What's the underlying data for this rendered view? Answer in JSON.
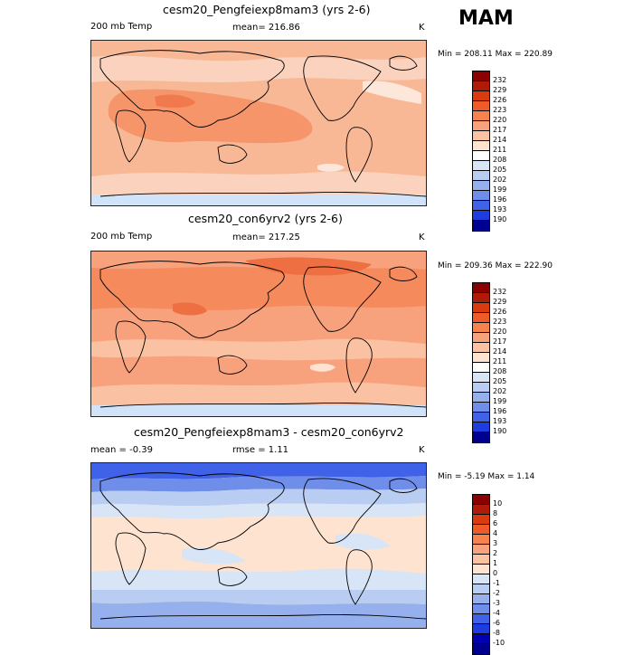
{
  "season": "MAM",
  "panels": [
    {
      "title": "cesm20_Pengfeiexp8mam3 (yrs 2-6)",
      "left": "200 mb Temp",
      "center": "mean= 216.86",
      "units": "K",
      "minmax": "Min = 208.11 Max = 220.89",
      "colorbar": {
        "labels": [
          "232",
          "229",
          "226",
          "223",
          "220",
          "217",
          "214",
          "211",
          "208",
          "205",
          "202",
          "199",
          "196",
          "193",
          "190"
        ],
        "colors": [
          "#8b0000",
          "#b01a08",
          "#d93a10",
          "#ee5a28",
          "#f6824d",
          "#f7a27c",
          "#fac2a3",
          "#fde3d0",
          "#ffffff",
          "#d7e5f7",
          "#b8cdf1",
          "#95b0ec",
          "#6f8eea",
          "#3f62e8",
          "#1e3ce0",
          "#00008f"
        ]
      },
      "colors": {
        "base": "#f8b896",
        "warm": "#f6956a",
        "hot": "#f07a4e",
        "light": "#fad2bd",
        "pale": "#fde7da",
        "cold": "#d0e3f8"
      }
    },
    {
      "title": "cesm20_con6yrv2 (yrs 2-6)",
      "left": "200 mb Temp",
      "center": "mean= 217.25",
      "units": "K",
      "minmax": "Min = 209.36 Max = 222.90",
      "colorbar": {
        "labels": [
          "232",
          "229",
          "226",
          "223",
          "220",
          "217",
          "214",
          "211",
          "208",
          "205",
          "202",
          "199",
          "196",
          "193",
          "190"
        ],
        "colors": [
          "#8b0000",
          "#b01a08",
          "#d93a10",
          "#ee5a28",
          "#f6824d",
          "#f7a27c",
          "#fac2a3",
          "#fde3d0",
          "#ffffff",
          "#d7e5f7",
          "#b8cdf1",
          "#95b0ec",
          "#6f8eea",
          "#3f62e8",
          "#1e3ce0",
          "#00008f"
        ]
      },
      "colors": {
        "base": "#f7a27c",
        "warm": "#f58a5d",
        "hot": "#ee6f42",
        "light": "#fac2a3",
        "pale": "#fde3d0",
        "cold": "#d0e3f8"
      }
    },
    {
      "title": "cesm20_Pengfeiexp8mam3 - cesm20_con6yrv2",
      "left": "mean =  -0.39",
      "center": "rmse =   1.11",
      "units": "K",
      "minmax": "Min =  -5.19 Max =   1.14",
      "colorbar": {
        "labels": [
          "10",
          "8",
          "6",
          "4",
          "3",
          "2",
          "1",
          "0",
          "-1",
          "-2",
          "-3",
          "-4",
          "-6",
          "-8",
          "-10"
        ],
        "colors": [
          "#8b0000",
          "#b01a08",
          "#d93a10",
          "#ee5a28",
          "#f6824d",
          "#f7a27c",
          "#fac2a3",
          "#fde3d0",
          "#d7e5f7",
          "#b8cdf1",
          "#95b0ec",
          "#6f8eea",
          "#3f62e8",
          "#1e3ce0",
          "#0000b0",
          "#00008f"
        ]
      },
      "colors": {
        "base": "#fde3d0",
        "pale": "#d7e5f7",
        "mid": "#b8cdf1",
        "deep": "#95b0ec",
        "deeper": "#6f8eea",
        "deepest": "#3f62e8"
      }
    }
  ]
}
